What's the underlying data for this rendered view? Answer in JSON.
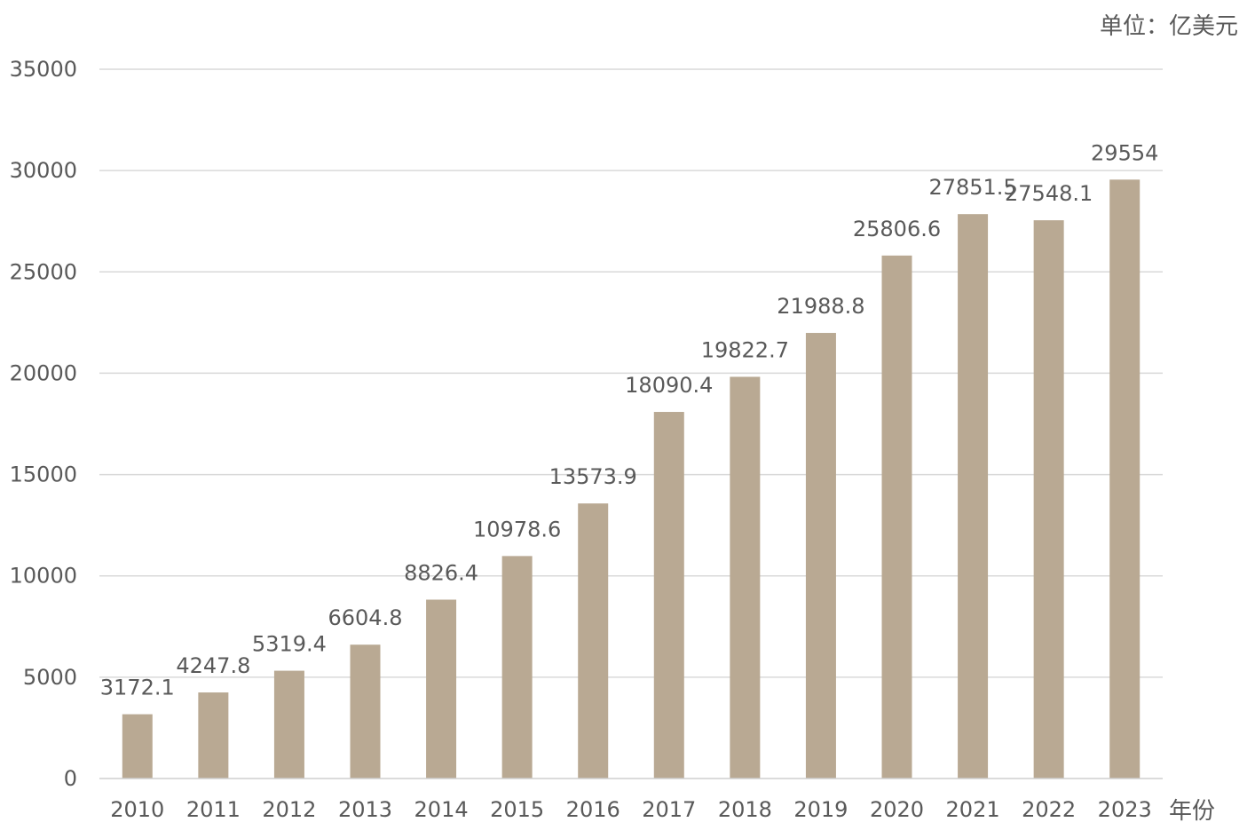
{
  "chart_data": {
    "type": "bar",
    "categories": [
      "2010",
      "2011",
      "2012",
      "2013",
      "2014",
      "2015",
      "2016",
      "2017",
      "2018",
      "2019",
      "2020",
      "2021",
      "2022",
      "2023"
    ],
    "values": [
      3172.1,
      4247.8,
      5319.4,
      6604.8,
      8826.4,
      10978.6,
      13573.9,
      18090.4,
      19822.7,
      21988.8,
      25806.6,
      27851.5,
      27548.1,
      29554
    ],
    "value_labels": [
      "3172.1",
      "4247.8",
      "5319.4",
      "6604.8",
      "8826.4",
      "10978.6",
      "13573.9",
      "18090.4",
      "19822.7",
      "21988.8",
      "25806.6",
      "27851.5",
      "27548.1",
      "29554"
    ],
    "y_ticks": [
      "0",
      "5000",
      "10000",
      "15000",
      "20000",
      "25000",
      "30000",
      "35000"
    ],
    "ylim": [
      0,
      35000
    ],
    "unit_label": "单位：亿美元",
    "xlabel": "年份",
    "grid": true,
    "bar_color": "#b9a993",
    "text_color": "#595959",
    "grid_color": "#d9d9d9"
  }
}
